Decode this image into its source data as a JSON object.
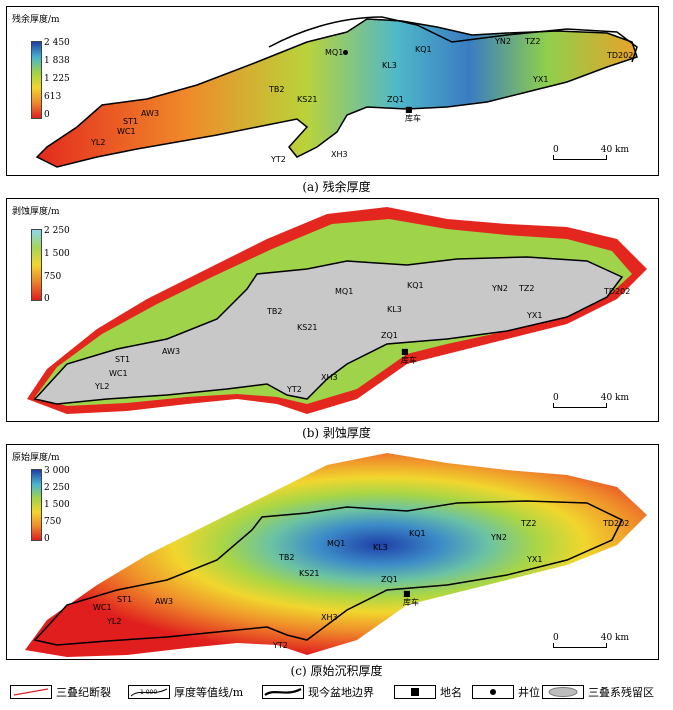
{
  "panels": [
    {
      "id": "a",
      "colorbar": {
        "title": "残余厚度/m",
        "ticks": [
          "2 450",
          "1 838",
          "1 225",
          "613",
          "0"
        ],
        "colors": [
          "#1e3fa8",
          "#46b4cf",
          "#9ed34a",
          "#f3d52d",
          "#ee8b2c",
          "#e01e1e"
        ]
      },
      "caption": "(a) 残余厚度",
      "wells": [
        "MQ1",
        "KQ1",
        "YN2",
        "TZ2",
        "TD202",
        "KL3",
        "YX1",
        "TB2",
        "KS21",
        "ZQ1",
        "AW3",
        "ST1",
        "WC1",
        "YL2",
        "XH3",
        "YT2"
      ],
      "place": "库车",
      "scale": {
        "zero": "0",
        "dist": "40 km"
      }
    },
    {
      "id": "b",
      "colorbar": {
        "title": "剥蚀厚度/m",
        "ticks": [
          "2 250",
          "1 500",
          "750",
          "0"
        ],
        "colors": [
          "#8cd8ee",
          "#a5d65a",
          "#f1d62e",
          "#ec7f2b",
          "#e01e1e"
        ]
      },
      "caption": "(b) 剥蚀厚度",
      "wells": [
        "MQ1",
        "KQ1",
        "YN2",
        "TZ2",
        "TD202",
        "TB2",
        "KS21",
        "KL3",
        "ZQ1",
        "YX1",
        "AW3",
        "ST1",
        "WC1",
        "YL2",
        "YT2",
        "XH3"
      ],
      "place": "库车",
      "scale": {
        "zero": "0",
        "dist": "40 km"
      }
    },
    {
      "id": "c",
      "colorbar": {
        "title": "原始厚度/m",
        "ticks": [
          "3 000",
          "2 250",
          "1 500",
          "750",
          "0"
        ],
        "colors": [
          "#1e3fa8",
          "#46b4cf",
          "#9ed34a",
          "#f3d52d",
          "#ee8b2c",
          "#e01e1e"
        ]
      },
      "caption": "(c) 原始沉积厚度",
      "wells": [
        "MQ1",
        "KL3",
        "KQ1",
        "YN2",
        "TZ2",
        "TD202",
        "TB2",
        "KS21",
        "ZQ1",
        "YX1",
        "ST1",
        "WC1",
        "AW3",
        "YL2",
        "XH3",
        "YT2"
      ],
      "place": "库车",
      "scale": {
        "zero": "0",
        "dist": "40 km"
      }
    }
  ],
  "legend": {
    "fault": "三叠纪断裂",
    "contour": "厚度等值线/m",
    "contour_sample": "1 000",
    "boundary": "现今盆地边界",
    "place": "地名",
    "well": "井位",
    "remnant": "三叠系残留区"
  }
}
